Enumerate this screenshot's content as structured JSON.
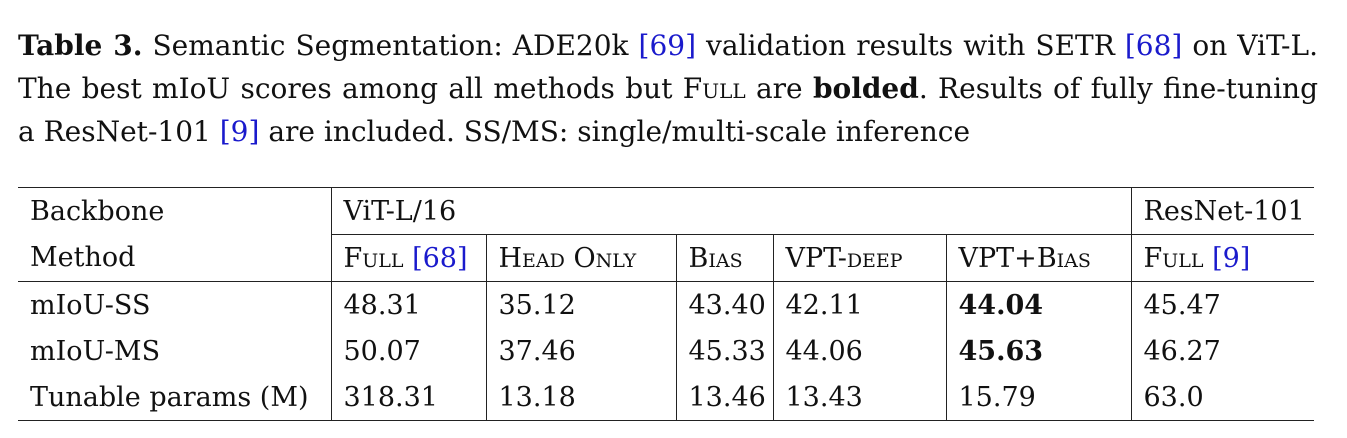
{
  "caption": {
    "label": "Table 3.",
    "part1": " Semantic Segmentation: ADE20k ",
    "cite1": "[69]",
    "part2": " validation results with SETR ",
    "cite2": "[68]",
    "part3": " on ViT-L. The best mIoU scores among all methods but ",
    "full_word": "Full",
    "part4": " are ",
    "bolded_word": "bolded",
    "part5": ". Results of fully fine-tuning a ResNet-101 ",
    "cite3": "[9]",
    "part6": " are included. SS/MS: single/multi-scale inference"
  },
  "table": {
    "backbone_label": "Backbone",
    "vit_label": "ViT-L/16",
    "resnet_label": "ResNet-101",
    "method_label": "Method",
    "methods": {
      "full": "Full",
      "full_cite": "[68]",
      "head_only": "Head Only",
      "bias": "Bias",
      "vpt_deep_prefix": "VPT-",
      "vpt_deep_suffix": "deep",
      "vpt_bias_prefix": "VPT+",
      "vpt_bias_suffix": "Bias",
      "resnet_full": "Full",
      "resnet_full_cite": "[9]"
    },
    "rows": [
      {
        "label": "mIoU-SS",
        "values": [
          "48.31",
          "35.12",
          "43.40",
          "42.11",
          "44.04",
          "45.47"
        ]
      },
      {
        "label": "mIoU-MS",
        "values": [
          "50.07",
          "37.46",
          "45.33",
          "44.06",
          "45.63",
          "46.27"
        ]
      },
      {
        "label": "Tunable params (M)",
        "values": [
          "318.31",
          "13.18",
          "13.46",
          "13.43",
          "15.79",
          "63.0"
        ]
      }
    ]
  }
}
